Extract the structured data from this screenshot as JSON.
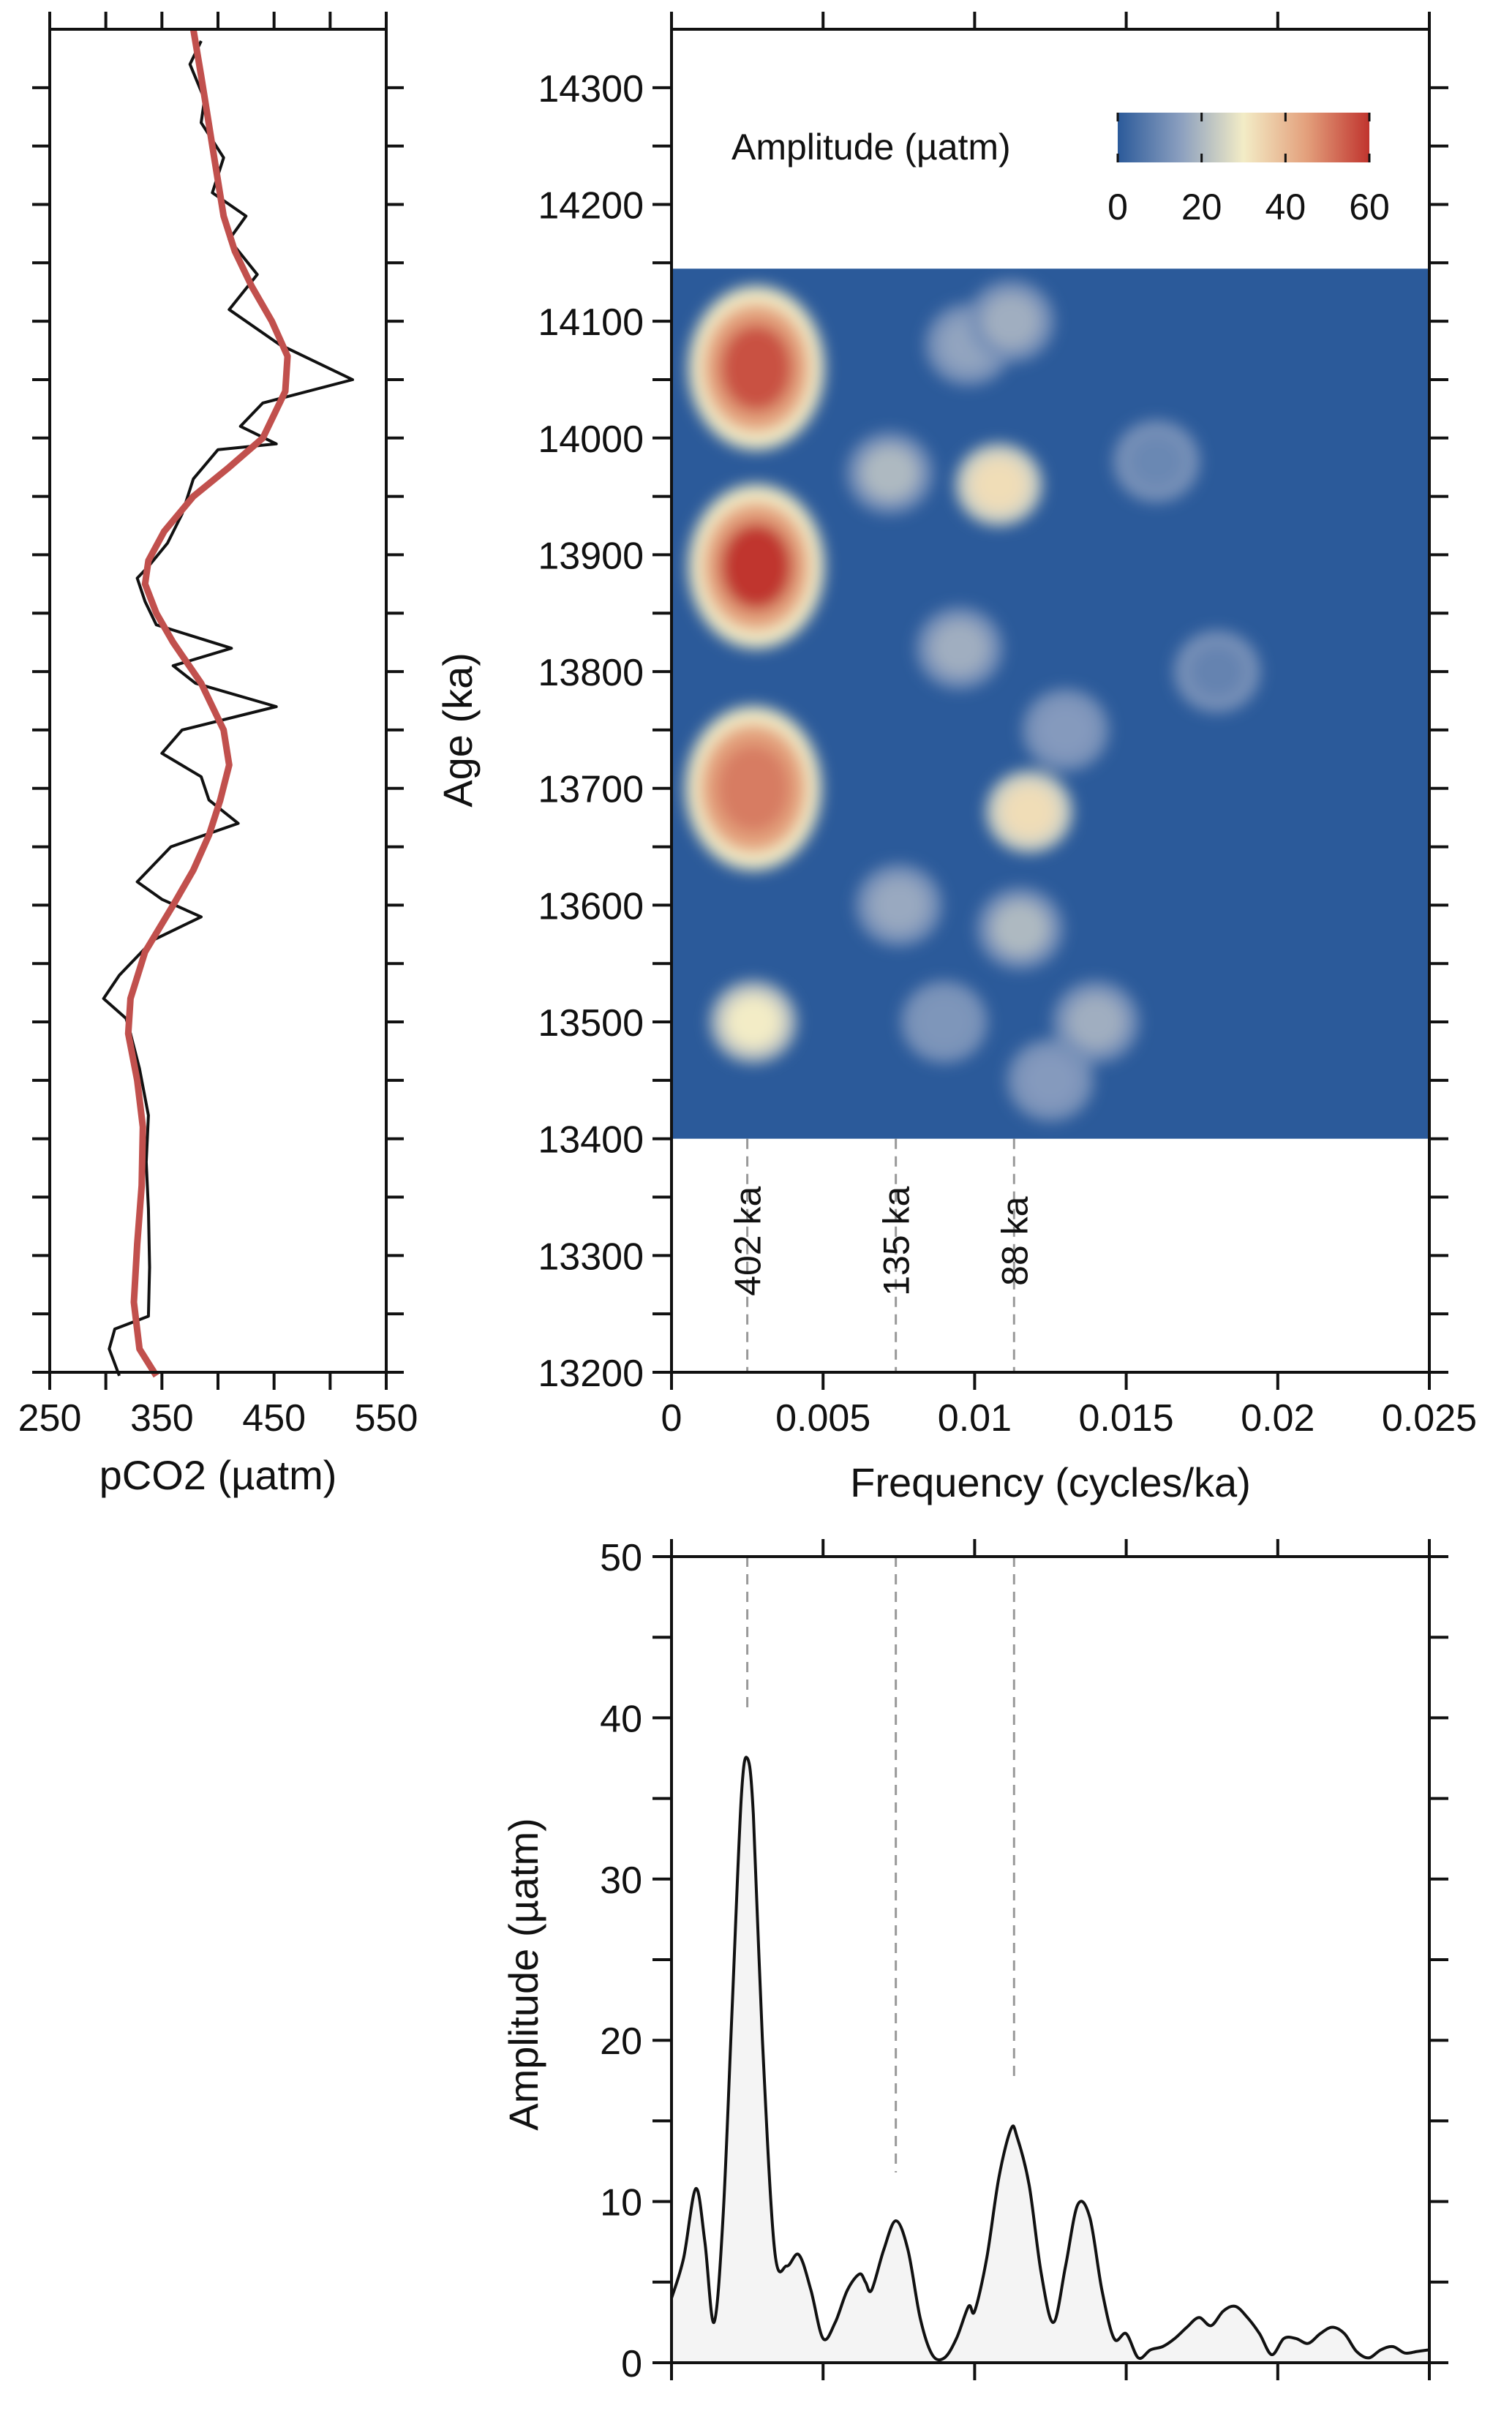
{
  "chart_data": [
    {
      "type": "line",
      "panel": "pco2-record",
      "xlabel": "pCO2 (µatm)",
      "ylabel": "",
      "xlim": [
        250,
        550
      ],
      "ylim": [
        13200,
        14350
      ],
      "xticks": [
        250,
        350,
        450,
        550
      ],
      "tick_labels": [
        "250",
        "350",
        "450",
        "550"
      ],
      "series": [
        {
          "style": "raw",
          "color": "#111111",
          "points": [
            [
              312,
              13197
            ],
            [
              303,
              13220
            ],
            [
              308,
              13237
            ],
            [
              338,
              13248
            ],
            [
              339,
              13290
            ],
            [
              338,
              13340
            ],
            [
              336,
              13380
            ],
            [
              338,
              13420
            ],
            [
              330,
              13460
            ],
            [
              322,
              13490
            ],
            [
              318,
              13503
            ],
            [
              298,
              13520
            ],
            [
              312,
              13540
            ],
            [
              342,
              13570
            ],
            [
              385,
              13590
            ],
            [
              350,
              13605
            ],
            [
              328,
              13620
            ],
            [
              358,
              13650
            ],
            [
              418,
              13670
            ],
            [
              392,
              13690
            ],
            [
              385,
              13710
            ],
            [
              350,
              13730
            ],
            [
              368,
              13750
            ],
            [
              452,
              13770
            ],
            [
              380,
              13790
            ],
            [
              360,
              13805
            ],
            [
              412,
              13820
            ],
            [
              345,
              13840
            ],
            [
              335,
              13860
            ],
            [
              328,
              13880
            ],
            [
              338,
              13890
            ],
            [
              355,
              13910
            ],
            [
              368,
              13935
            ],
            [
              378,
              13965
            ],
            [
              400,
              13990
            ],
            [
              452,
              13995
            ],
            [
              420,
              14010
            ],
            [
              440,
              14030
            ],
            [
              520,
              14050
            ],
            [
              455,
              14080
            ],
            [
              410,
              14110
            ],
            [
              435,
              14140
            ],
            [
              410,
              14170
            ],
            [
              425,
              14190
            ],
            [
              395,
              14210
            ],
            [
              405,
              14240
            ],
            [
              385,
              14270
            ],
            [
              388,
              14290
            ],
            [
              375,
              14320
            ],
            [
              385,
              14340
            ]
          ]
        },
        {
          "style": "smoothed",
          "color": "#c1504d",
          "points": [
            [
              345,
              13197
            ],
            [
              330,
              13220
            ],
            [
              325,
              13260
            ],
            [
              328,
              13310
            ],
            [
              332,
              13360
            ],
            [
              333,
              13410
            ],
            [
              328,
              13450
            ],
            [
              320,
              13490
            ],
            [
              322,
              13520
            ],
            [
              335,
              13560
            ],
            [
              360,
              13600
            ],
            [
              378,
              13630
            ],
            [
              392,
              13660
            ],
            [
              402,
              13690
            ],
            [
              410,
              13720
            ],
            [
              405,
              13750
            ],
            [
              385,
              13790
            ],
            [
              360,
              13825
            ],
            [
              345,
              13850
            ],
            [
              335,
              13875
            ],
            [
              338,
              13895
            ],
            [
              352,
              13920
            ],
            [
              378,
              13950
            ],
            [
              410,
              13975
            ],
            [
              440,
              14000
            ],
            [
              460,
              14040
            ],
            [
              462,
              14070
            ],
            [
              448,
              14100
            ],
            [
              430,
              14130
            ],
            [
              415,
              14160
            ],
            [
              405,
              14190
            ],
            [
              400,
              14220
            ],
            [
              395,
              14250
            ],
            [
              390,
              14280
            ],
            [
              385,
              14310
            ],
            [
              378,
              14350
            ]
          ]
        }
      ]
    },
    {
      "type": "heatmap",
      "panel": "evolutive-spectrum",
      "xlabel": "Frequency (cycles/ka)",
      "ylabel": "Age (ka)",
      "xlim": [
        0,
        0.025
      ],
      "ylim": [
        13200,
        14350
      ],
      "xtick_labels": [
        "0",
        "0.005",
        "0.01",
        "0.015",
        "0.02",
        "0.025"
      ],
      "ytick_labels": [
        "13200",
        "13300",
        "13400",
        "13500",
        "13600",
        "13700",
        "13800",
        "13900",
        "14000",
        "14100",
        "14200",
        "14300"
      ],
      "data_extent": {
        "freq": [
          0,
          0.025
        ],
        "age": [
          13400,
          14145
        ]
      },
      "colorbar": {
        "label": "Amplitude (µatm)",
        "ticks": [
          "0",
          "20",
          "40",
          "60"
        ],
        "range": [
          0,
          60
        ],
        "colors": [
          "#2b5a9a",
          "#f3ecc6",
          "#c0342e"
        ]
      },
      "annotations": [
        {
          "freq": 0.0025,
          "text": "402 ka"
        },
        {
          "freq": 0.0074,
          "text": "135 ka"
        },
        {
          "freq": 0.0113,
          "text": "88 ka"
        }
      ],
      "hotspots": [
        {
          "freq": 0.0028,
          "age": 14060,
          "amp": 56
        },
        {
          "freq": 0.0028,
          "age": 13890,
          "amp": 62
        },
        {
          "freq": 0.0027,
          "age": 13700,
          "amp": 50
        },
        {
          "freq": 0.0027,
          "age": 13500,
          "amp": 30
        },
        {
          "freq": 0.0108,
          "age": 13960,
          "amp": 33
        },
        {
          "freq": 0.0118,
          "age": 13680,
          "amp": 33
        },
        {
          "freq": 0.0072,
          "age": 13970,
          "amp": 20
        },
        {
          "freq": 0.0095,
          "age": 13820,
          "amp": 18
        },
        {
          "freq": 0.0075,
          "age": 13600,
          "amp": 17
        },
        {
          "freq": 0.0115,
          "age": 13580,
          "amp": 20
        },
        {
          "freq": 0.0112,
          "age": 14100,
          "amp": 18
        },
        {
          "freq": 0.0098,
          "age": 14080,
          "amp": 16
        },
        {
          "freq": 0.013,
          "age": 13750,
          "amp": 14
        },
        {
          "freq": 0.014,
          "age": 13500,
          "amp": 18
        },
        {
          "freq": 0.0125,
          "age": 13450,
          "amp": 14
        },
        {
          "freq": 0.009,
          "age": 13500,
          "amp": 13
        },
        {
          "freq": 0.016,
          "age": 13980,
          "amp": 10
        },
        {
          "freq": 0.018,
          "age": 13800,
          "amp": 9
        }
      ]
    },
    {
      "type": "area",
      "panel": "amplitude-spectrum",
      "xlabel": "",
      "ylabel": "Amplitude (µatm)",
      "xlim": [
        0,
        0.025
      ],
      "ylim": [
        0,
        50
      ],
      "ytick_labels": [
        "0",
        "10",
        "20",
        "30",
        "40",
        "50"
      ],
      "peak_markers": [
        0.0025,
        0.0074,
        0.0113
      ],
      "x": [
        0,
        0.0004,
        0.0008,
        0.0011,
        0.0014,
        0.0017,
        0.002,
        0.0023,
        0.0025,
        0.0027,
        0.003,
        0.0034,
        0.0038,
        0.0042,
        0.0046,
        0.005,
        0.0054,
        0.0058,
        0.0062,
        0.0064,
        0.0066,
        0.007,
        0.0074,
        0.0078,
        0.0082,
        0.0086,
        0.009,
        0.0094,
        0.0098,
        0.01,
        0.0104,
        0.0108,
        0.0112,
        0.0114,
        0.0118,
        0.0122,
        0.0126,
        0.013,
        0.0134,
        0.0138,
        0.0142,
        0.0146,
        0.015,
        0.0154,
        0.0158,
        0.0162,
        0.0166,
        0.017,
        0.0174,
        0.0178,
        0.0182,
        0.0186,
        0.019,
        0.0194,
        0.0198,
        0.0202,
        0.0206,
        0.021,
        0.0214,
        0.0218,
        0.0222,
        0.0226,
        0.023,
        0.0234,
        0.0238,
        0.0242,
        0.0246,
        0.025
      ],
      "values": [
        4.0,
        6.5,
        10.8,
        7.5,
        2.5,
        9.0,
        22.0,
        35.0,
        37.5,
        34.0,
        20.0,
        7.0,
        6.0,
        6.7,
        4.5,
        1.5,
        2.5,
        4.5,
        5.5,
        5.0,
        4.5,
        7.0,
        8.8,
        7.0,
        2.8,
        0.5,
        0.3,
        1.5,
        3.5,
        3.2,
        6.5,
        11.5,
        14.5,
        14.0,
        11.0,
        5.5,
        2.5,
        6.0,
        9.8,
        9.0,
        4.5,
        1.5,
        1.8,
        0.3,
        0.8,
        1.0,
        1.5,
        2.2,
        2.8,
        2.3,
        3.2,
        3.5,
        2.8,
        1.8,
        0.5,
        1.5,
        1.5,
        1.2,
        1.8,
        2.2,
        1.8,
        0.7,
        0.3,
        0.8,
        1.0,
        0.6,
        0.7,
        0.8
      ]
    }
  ]
}
